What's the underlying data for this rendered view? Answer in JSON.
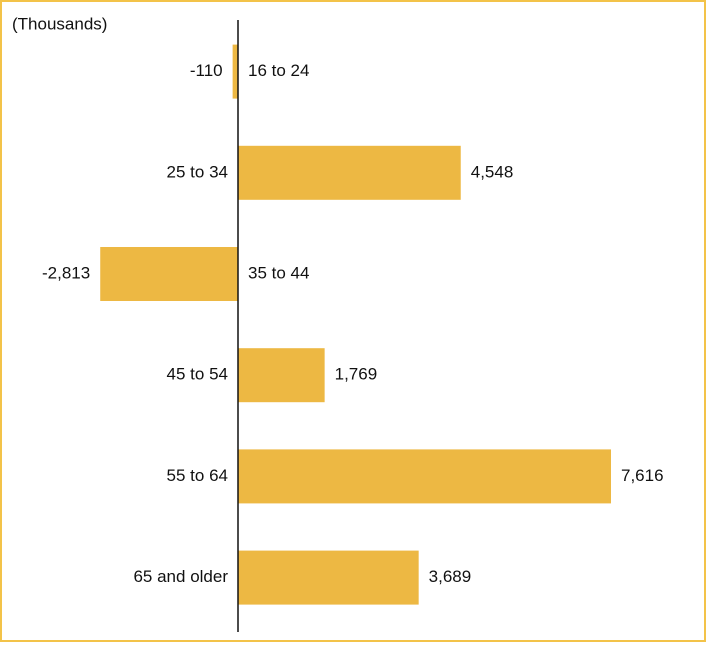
{
  "chart_data": {
    "type": "bar",
    "orientation": "horizontal",
    "subtitle": "(Thousands)",
    "categories": [
      "16 to 24",
      "25 to 34",
      "35 to 44",
      "45 to 54",
      "55 to 64",
      "65 and older"
    ],
    "values": [
      -110,
      4548,
      -2813,
      1769,
      7616,
      3689
    ],
    "value_labels": [
      "-110",
      "4,548",
      "-2,813",
      "1,769",
      "7,616",
      "3,689"
    ],
    "color": "#edb843"
  }
}
